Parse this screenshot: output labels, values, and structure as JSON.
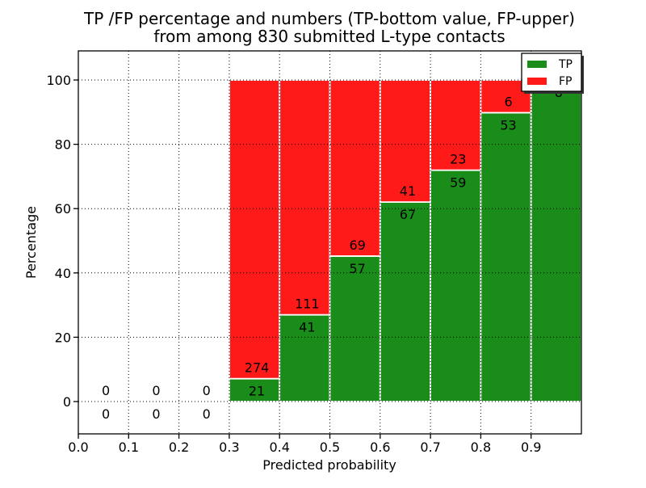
{
  "title": {
    "line1": "TP /FP percentage and numbers (TP-bottom value, FP-upper)",
    "line2": "from among 830 submitted L-type contacts"
  },
  "chart_data": {
    "type": "bar",
    "stacked": true,
    "normalized_to_percent": true,
    "title": "TP /FP percentage and numbers (TP-bottom value, FP-upper) from among 830 submitted L-type contacts",
    "xlabel": "Predicted probability",
    "ylabel": "Percentage",
    "bin_starts": [
      0.0,
      0.1,
      0.2,
      0.3,
      0.4,
      0.5,
      0.6,
      0.7,
      0.8,
      0.9
    ],
    "bin_width": 0.1,
    "series": [
      {
        "name": "TP",
        "color": "#1a8c1a",
        "values": [
          0,
          0,
          0,
          21,
          41,
          57,
          67,
          59,
          53,
          8
        ]
      },
      {
        "name": "FP",
        "color": "#ff1a1a",
        "values": [
          0,
          0,
          0,
          274,
          111,
          69,
          41,
          23,
          6,
          0
        ]
      }
    ],
    "bar_label_note": "TP count printed below segment boundary, FP count above it",
    "x_tick_labels": [
      "0.0",
      "0.1",
      "0.2",
      "0.3",
      "0.4",
      "0.5",
      "0.6",
      "0.7",
      "0.8",
      "0.9"
    ],
    "y_tick_labels": [
      "0",
      "20",
      "40",
      "60",
      "80",
      "100"
    ],
    "y_tick_values": [
      0,
      20,
      40,
      60,
      80,
      100
    ],
    "xlim": [
      0.0,
      1.0
    ],
    "ylim": [
      -10,
      110
    ],
    "grid": true,
    "grid_style": "dotted-black-over-bars",
    "bar_edge_color": "#ffffff",
    "legend": {
      "position": "upper-right",
      "entries": [
        {
          "label": "TP",
          "color": "#1a8c1a"
        },
        {
          "label": "FP",
          "color": "#ff1a1a"
        }
      ]
    }
  }
}
